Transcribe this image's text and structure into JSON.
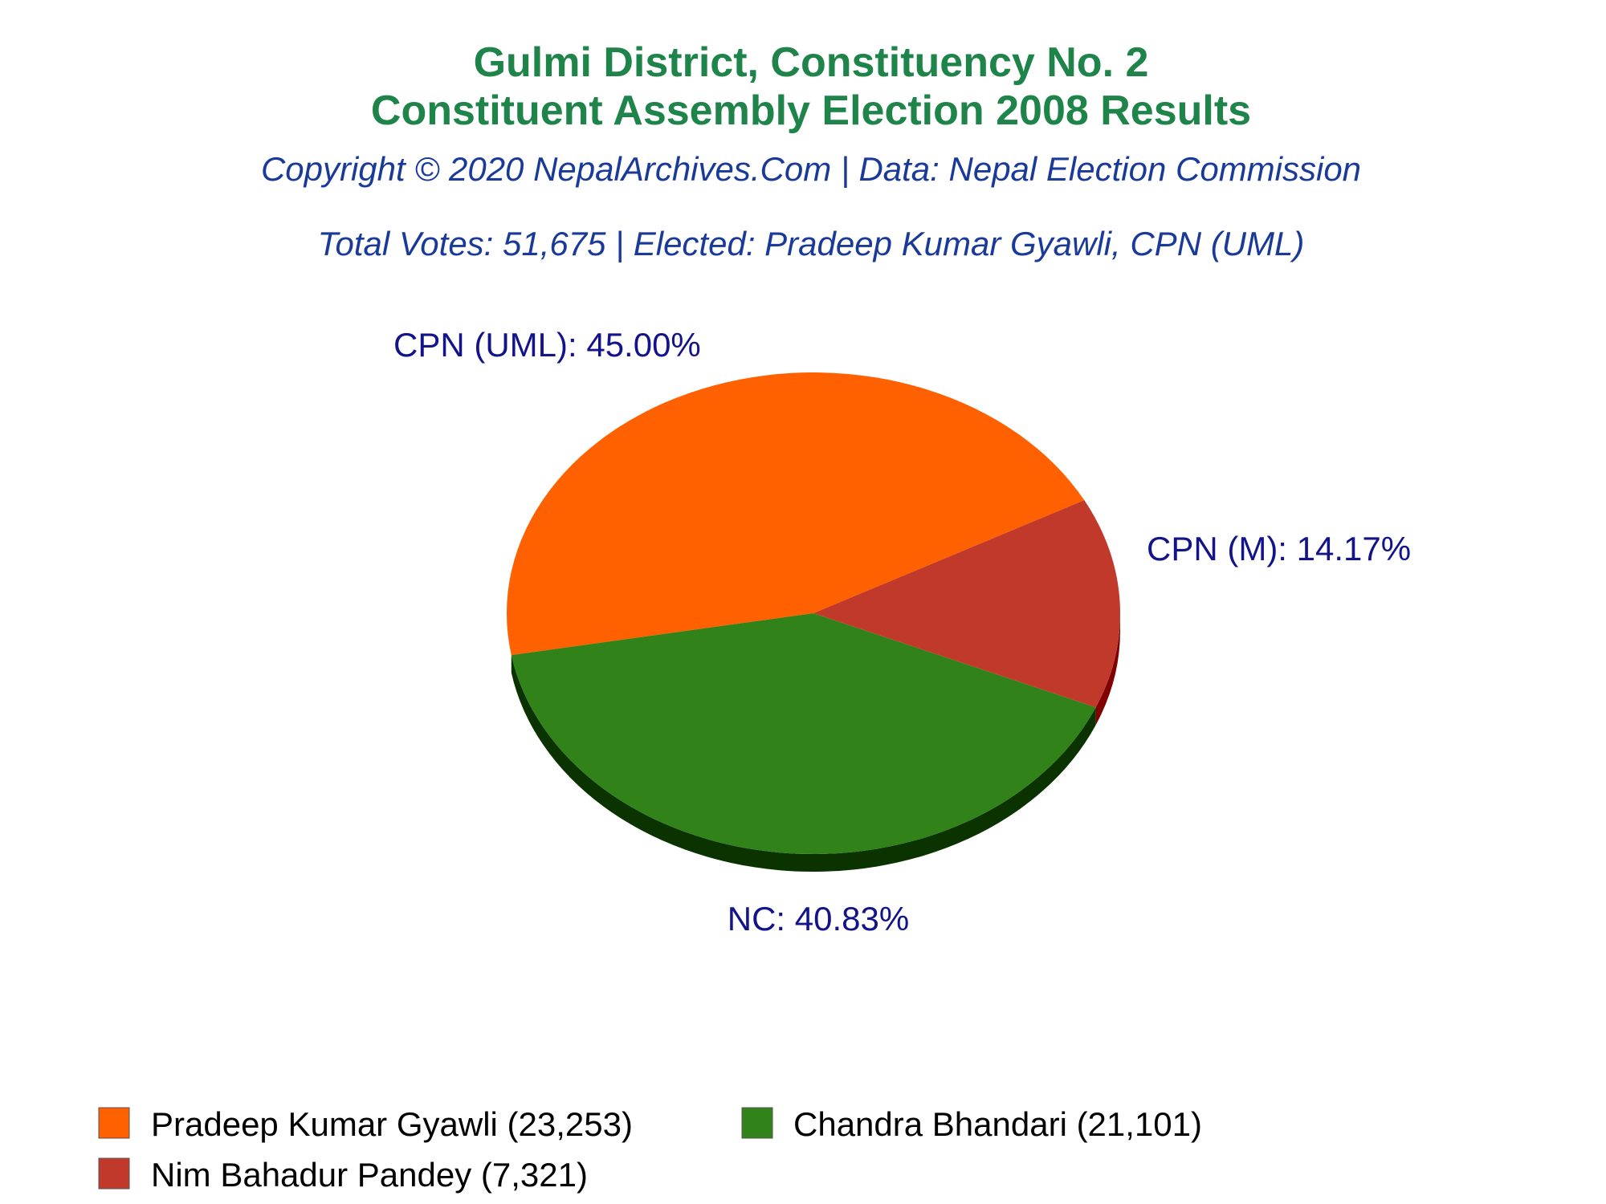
{
  "header": {
    "title_line1": "Gulmi District, Constituency No. 2",
    "title_line2": "Constituent Assembly Election 2008 Results",
    "copyright": "Copyright © 2020 NepalArchives.Com | Data: Nepal Election Commission",
    "summary": "Total Votes: 51,675 | Elected: Pradeep Kumar Gyawli, CPN (UML)"
  },
  "colors": {
    "title": "#1e8449",
    "subtitle": "#1a3a99",
    "label": "#13138a",
    "pie_uml": "#ff6000",
    "pie_nc": "#32821a",
    "pie_m": "#c0392b",
    "depth_uml": "#b30000",
    "depth_nc": "#0a3300",
    "depth_m": "#800000"
  },
  "chart_data": {
    "type": "pie",
    "title": "Gulmi District, Constituency No. 2 Constituent Assembly Election 2008 Results",
    "slices": [
      {
        "party": "CPN (UML)",
        "candidate": "Pradeep Kumar Gyawli",
        "votes": 23253,
        "percent": 45.0,
        "label": "CPN (UML): 45.00%",
        "legend": "Pradeep Kumar Gyawli (23,253)",
        "color": "#ff6000"
      },
      {
        "party": "NC",
        "candidate": "Chandra Bhandari",
        "votes": 21101,
        "percent": 40.83,
        "label": "NC: 40.83%",
        "legend": "Chandra Bhandari (21,101)",
        "color": "#32821a"
      },
      {
        "party": "CPN (M)",
        "candidate": "Nim Bahadur Pandey",
        "votes": 7321,
        "percent": 14.17,
        "label": "CPN (M): 14.17%",
        "legend": "Nim Bahadur Pandey (7,321)",
        "color": "#c0392b"
      }
    ],
    "total_votes": 51675,
    "legend_position": "bottom-left"
  }
}
